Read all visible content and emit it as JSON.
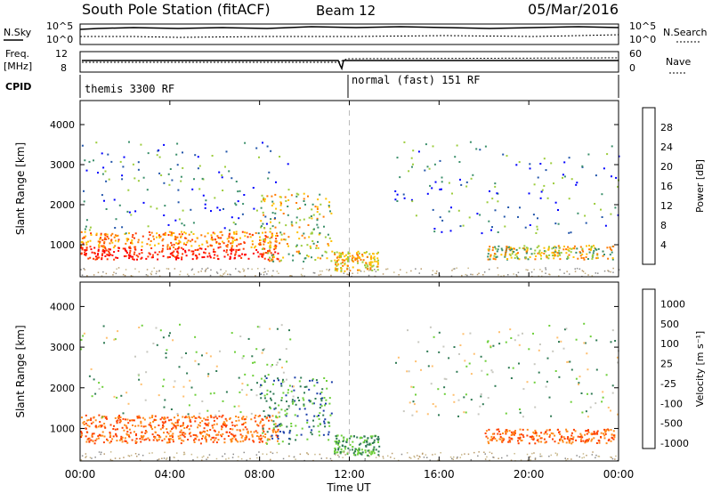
{
  "header": {
    "station": "South Pole Station (fitACF)",
    "beam": "Beam 12",
    "date": "05/Mar/2016"
  },
  "top_panels": {
    "nsky_label": "N.Sky",
    "nsky_ticks": [
      "10^5",
      "10^0"
    ],
    "nsearch_label": "N.Search",
    "nsearch_ticks": [
      "10^5",
      "10^0"
    ],
    "freq_label_1": "Freq.",
    "freq_label_2": "[MHz]",
    "freq_ticks": [
      "12",
      "8"
    ],
    "nave_label": "Nave",
    "nave_ticks": [
      "60",
      "0"
    ],
    "cpid_label": "CPID",
    "cpid_segments": [
      "themis 3300 RF",
      "normal (fast) 151 RF"
    ]
  },
  "chart_data": [
    {
      "type": "heatmap",
      "name": "power",
      "ylabel": "Slant Range [km]",
      "yticks": [
        "1000",
        "2000",
        "3000",
        "4000"
      ],
      "ylim": [
        200,
        4600
      ],
      "xlim": [
        "00:00",
        "24:00"
      ],
      "colorbar_label": "Power [dB]",
      "colorbar_ticks": [
        "4",
        "8",
        "12",
        "16",
        "20",
        "24",
        "28"
      ],
      "colorbar_range": [
        0,
        32
      ],
      "colors": [
        "#0000ff",
        "#2255aa",
        "#3a8f6a",
        "#9ccc3c",
        "#ffc000",
        "#ff7a00",
        "#ff3a00",
        "#ff0000"
      ]
    },
    {
      "type": "heatmap",
      "name": "velocity",
      "ylabel": "Slant Range [km]",
      "yticks": [
        "1000",
        "2000",
        "3000",
        "4000"
      ],
      "ylim": [
        200,
        4600
      ],
      "xlim": [
        "00:00",
        "24:00"
      ],
      "colorbar_label": "Velocity [m s⁻¹]",
      "colorbar_ticks": [
        "1000",
        "500",
        "100",
        "25",
        "-25",
        "-100",
        "-500",
        "-1000"
      ],
      "colors": [
        "#1a3ea8",
        "#2f7a54",
        "#6ecf3a",
        "#c8c8c0",
        "#ffc070",
        "#ff8a1a",
        "#ff4000",
        "#ff0000"
      ]
    }
  ],
  "xaxis": {
    "ticks": [
      "00:00",
      "04:00",
      "08:00",
      "12:00",
      "16:00",
      "20:00",
      "00:00"
    ],
    "label": "Time UT"
  }
}
